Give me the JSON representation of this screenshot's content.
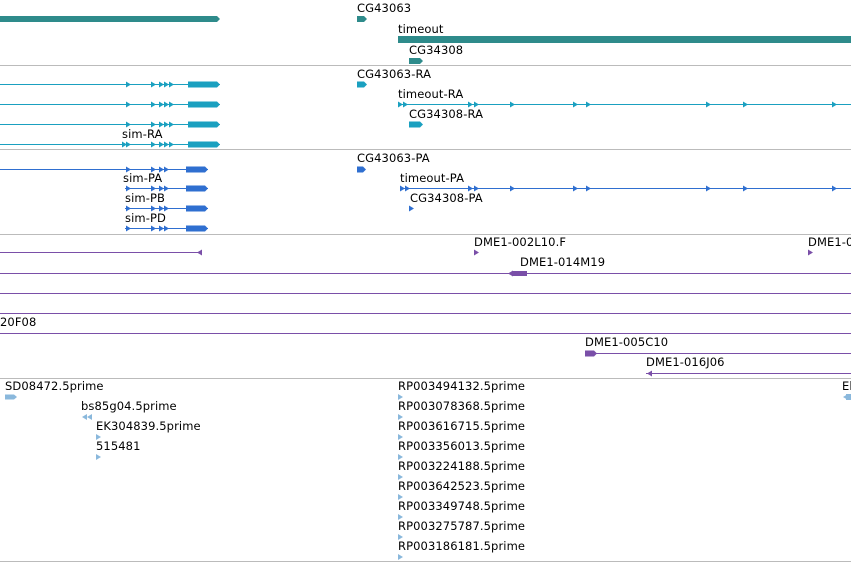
{
  "colors": {
    "gene": "#2e8b8b",
    "transcript": "#1aa0c0",
    "protein": "#2f6fd0",
    "clone": "#7a4fa8",
    "est": "#8ab8dc",
    "divider": "#bbbbbb"
  },
  "tracks": {
    "genes": [
      "CG43063",
      "timeout",
      "CG34308"
    ],
    "transcripts": [
      "CG43063-RA",
      "timeout-RA",
      "CG34308-RA",
      "sim-RA"
    ],
    "proteins": [
      "CG43063-PA",
      "sim-PA",
      "timeout-PA",
      "CG34308-PA",
      "sim-PB",
      "sim-PD"
    ],
    "clones": [
      "DME1-002L10.F",
      "DME1-0",
      "DME1-014M19",
      "20F08",
      "DME1-005C10",
      "DME1-016J06"
    ],
    "ests": [
      "SD08472.5prime",
      "bs85g04.5prime",
      "EK304839.5prime",
      "515481",
      "RP003494132.5prime",
      "RP003078368.5prime",
      "RP003616715.5prime",
      "RP003356013.5prime",
      "RP003224188.5prime",
      "RP003642523.5prime",
      "RP003349748.5prime",
      "RP003275787.5prime",
      "RP003186181.5prime",
      "El"
    ]
  }
}
